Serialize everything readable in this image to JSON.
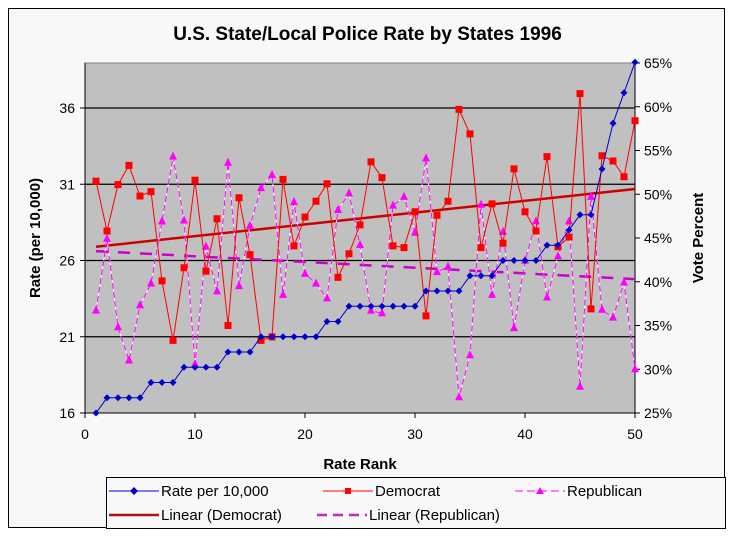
{
  "chart_data": {
    "type": "line",
    "title": "U.S. State/Local Police Rate by States 1996",
    "xlabel": "Rate Rank",
    "ylabel": "Rate (per 10,000)",
    "y2label": "Vote Percent",
    "xlim": [
      0,
      50
    ],
    "ylim": [
      16,
      39
    ],
    "y2lim": [
      25,
      65
    ],
    "x_ticks": [
      "0",
      "10",
      "20",
      "30",
      "40",
      "50"
    ],
    "y_ticks": [
      "16",
      "21",
      "26",
      "31",
      "36"
    ],
    "y2_ticks": [
      "25%",
      "30%",
      "35%",
      "40%",
      "45%",
      "50%",
      "55%",
      "60%",
      "65%"
    ],
    "grid": "horizontal major gridlines on left axis",
    "legend_position": "bottom",
    "x": [
      1,
      2,
      3,
      4,
      5,
      6,
      7,
      8,
      9,
      10,
      11,
      12,
      13,
      14,
      15,
      16,
      17,
      18,
      19,
      20,
      21,
      22,
      23,
      24,
      25,
      26,
      27,
      28,
      29,
      30,
      31,
      32,
      33,
      34,
      35,
      36,
      37,
      38,
      39,
      40,
      41,
      42,
      43,
      44,
      45,
      46,
      47,
      48,
      49,
      50
    ],
    "series": [
      {
        "name": "Rate per 10,000",
        "axis": "left",
        "color": "#0000cc",
        "marker": "diamond",
        "values": [
          16,
          17,
          17,
          17,
          17,
          18,
          18,
          18,
          19,
          19,
          19,
          19,
          20,
          20,
          20,
          21,
          21,
          21,
          21,
          21,
          21,
          22,
          22,
          23,
          23,
          23,
          23,
          23,
          23,
          23,
          24,
          24,
          24,
          24,
          25,
          25,
          25,
          26,
          26,
          26,
          26,
          27,
          27,
          28,
          29,
          29,
          32,
          35,
          37,
          39
        ]
      },
      {
        "name": "Democrat",
        "axis": "right",
        "color": "#ff0000",
        "marker": "square",
        "values": [
          51.5,
          45.8,
          51.1,
          53.3,
          49.8,
          50.3,
          40.1,
          33.3,
          41.6,
          51.6,
          41.2,
          47.2,
          35.0,
          49.6,
          43.1,
          33.3,
          33.7,
          51.7,
          44.1,
          47.4,
          49.2,
          51.2,
          40.5,
          43.2,
          46.5,
          53.7,
          51.9,
          44.1,
          43.9,
          48.0,
          36.1,
          47.6,
          49.2,
          59.7,
          56.9,
          43.9,
          48.9,
          44.4,
          52.9,
          48.0,
          45.8,
          54.3,
          44.0,
          45.1,
          61.5,
          36.9,
          54.4,
          53.8,
          52.0,
          58.4
        ]
      },
      {
        "name": "Republican",
        "axis": "right",
        "color": "#ff00ff",
        "marker": "triangle",
        "values": [
          36.7,
          44.9,
          34.8,
          31.0,
          37.3,
          39.8,
          46.9,
          54.3,
          47.0,
          30.6,
          44.0,
          38.9,
          53.6,
          39.5,
          46.4,
          50.7,
          52.2,
          38.5,
          49.1,
          40.9,
          39.8,
          38.1,
          48.2,
          50.1,
          44.2,
          36.7,
          36.4,
          48.7,
          49.7,
          45.6,
          54.1,
          41.1,
          41.7,
          26.8,
          31.6,
          48.8,
          38.5,
          45.7,
          34.7,
          42.4,
          46.9,
          38.2,
          42.9,
          46.9,
          28.0,
          49.7,
          36.8,
          35.9,
          39.9,
          30.0
        ]
      }
    ],
    "trendlines": [
      {
        "name": "Linear (Democrat)",
        "axis": "right",
        "color": "#cc0000",
        "style": "solid",
        "x": [
          1,
          50
        ],
        "values": [
          44.0,
          50.6
        ]
      },
      {
        "name": "Linear (Republican)",
        "axis": "right",
        "color": "#cc00cc",
        "style": "dashed",
        "x": [
          1,
          50
        ],
        "values": [
          43.5,
          40.3
        ]
      }
    ]
  },
  "legend": {
    "items": [
      {
        "label": "Rate per 10,000"
      },
      {
        "label": "Democrat"
      },
      {
        "label": "Republican"
      },
      {
        "label": "Linear (Democrat)"
      },
      {
        "label": "Linear (Republican)"
      }
    ]
  }
}
